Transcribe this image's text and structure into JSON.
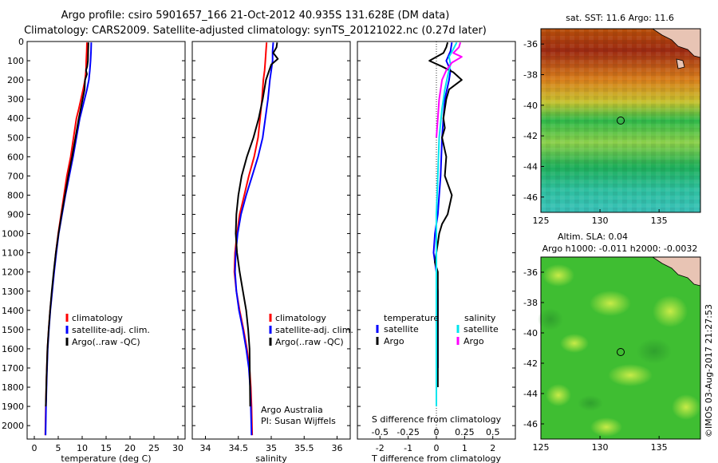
{
  "header": {
    "title": "Argo profile: csiro 5901657_166 21-Oct-2012 40.935S 131.628E (DM data)",
    "subtitle": "Climatology: CARS2009. Satellite-adjusted climatology: synTS_20121022.nc (0.27d later)"
  },
  "footer": {
    "credit": "©IMOS 03-Aug-2017 21:27:53"
  },
  "colors": {
    "climatology": "#ff0000",
    "satellite": "#0000ff",
    "argo": "#000000",
    "t_satellite": "#0000ff",
    "s_satellite": "#00e5ee",
    "s_argo": "#ff00ff"
  },
  "chart_data": [
    {
      "id": "temperature",
      "type": "line",
      "xlabel": "temperature (deg C)",
      "ylabel": "",
      "xlim": [
        -1.5,
        31.5
      ],
      "ylim": [
        2070,
        0
      ],
      "xticks": [
        0,
        5,
        10,
        15,
        20,
        25,
        30
      ],
      "yticks": [
        0,
        100,
        200,
        300,
        400,
        500,
        600,
        700,
        800,
        900,
        1000,
        1100,
        1200,
        1300,
        1400,
        1500,
        1600,
        1700,
        1800,
        1900,
        2000
      ],
      "legend": {
        "placement": "lower-center",
        "entries": [
          "climatology",
          "satellite-adj. clim.",
          "Argo(..raw -QC)"
        ]
      },
      "annotations": [],
      "series": [
        {
          "name": "climatology",
          "color": "#ff0000",
          "x": [
            11.0,
            10.95,
            10.85,
            10.8,
            10.6,
            10.2,
            9.75,
            9.3,
            8.8,
            8.2,
            7.6,
            6.8,
            6.2,
            5.6,
            5.0,
            4.5,
            4.1,
            3.7,
            3.3,
            3.0,
            2.75,
            2.55,
            2.4,
            2.3
          ],
          "y": [
            5,
            50,
            100,
            150,
            200,
            250,
            300,
            350,
            400,
            500,
            600,
            700,
            800,
            900,
            1000,
            1100,
            1200,
            1300,
            1400,
            1500,
            1600,
            1750,
            1900,
            2050
          ]
        },
        {
          "name": "satellite-adj. clim.",
          "color": "#0000ff",
          "x": [
            11.9,
            11.85,
            11.75,
            11.6,
            11.4,
            11.0,
            10.5,
            10.0,
            9.5,
            8.8,
            8.1,
            7.3,
            6.5,
            5.8,
            5.1,
            4.6,
            4.15,
            3.75,
            3.35,
            3.05,
            2.8,
            2.6,
            2.45,
            2.35
          ],
          "y": [
            5,
            50,
            100,
            150,
            200,
            250,
            300,
            350,
            400,
            500,
            600,
            700,
            800,
            900,
            1000,
            1100,
            1200,
            1300,
            1400,
            1500,
            1600,
            1750,
            1900,
            2050
          ]
        },
        {
          "name": "Argo(..raw -QC)",
          "color": "#000000",
          "x": [
            11.3,
            11.25,
            11.2,
            11.05,
            10.8,
            11.0,
            10.6,
            10.5,
            10.1,
            9.7,
            9.3,
            8.6,
            7.9,
            7.1,
            6.4,
            5.7,
            5.05,
            4.5,
            4.05,
            3.65,
            3.3,
            3.0,
            2.75,
            2.55,
            2.4
          ],
          "y": [
            5,
            50,
            100,
            130,
            150,
            170,
            200,
            250,
            300,
            350,
            400,
            500,
            600,
            700,
            800,
            900,
            1000,
            1100,
            1200,
            1300,
            1400,
            1500,
            1600,
            1750,
            1900
          ]
        }
      ]
    },
    {
      "id": "salinity",
      "type": "line",
      "xlabel": "salinity",
      "ylabel": "",
      "xlim": [
        33.8,
        36.2
      ],
      "ylim": [
        2070,
        0
      ],
      "xticks": [
        34,
        34.5,
        35,
        35.5,
        36
      ],
      "xticklabels": [
        "34",
        "34.5",
        "35",
        "35.5",
        "36"
      ],
      "legend": {
        "placement": "lower-center",
        "entries": [
          "climatology",
          "satellite-adj. clim.",
          "Argo(..raw -QC)"
        ]
      },
      "annotations": [
        "Argo Australia",
        "PI: Susan Wijffels"
      ],
      "series": [
        {
          "name": "climatology",
          "color": "#ff0000",
          "x": [
            34.93,
            34.92,
            34.91,
            34.9,
            34.88,
            34.86,
            34.83,
            34.8,
            34.74,
            34.66,
            34.59,
            34.52,
            34.48,
            34.45,
            34.44,
            34.47,
            34.52,
            34.58,
            34.63,
            34.67,
            34.69,
            34.7,
            34.71
          ],
          "y": [
            5,
            50,
            100,
            150,
            200,
            300,
            400,
            500,
            600,
            700,
            800,
            900,
            1000,
            1100,
            1200,
            1300,
            1400,
            1500,
            1600,
            1700,
            1800,
            1900,
            2050
          ]
        },
        {
          "name": "satellite-adj. clim.",
          "color": "#0000ff",
          "x": [
            35.03,
            35.02,
            35.02,
            35.0,
            34.98,
            34.95,
            34.91,
            34.87,
            34.8,
            34.71,
            34.62,
            34.54,
            34.49,
            34.46,
            34.45,
            34.47,
            34.51,
            34.57,
            34.62,
            34.66,
            34.68,
            34.69,
            34.7
          ],
          "y": [
            5,
            50,
            100,
            150,
            200,
            300,
            400,
            500,
            600,
            700,
            800,
            900,
            1000,
            1100,
            1200,
            1300,
            1400,
            1500,
            1600,
            1700,
            1800,
            1900,
            2050
          ]
        },
        {
          "name": "Argo(..raw -QC)",
          "color": "#000000",
          "x": [
            35.09,
            35.08,
            35.03,
            35.1,
            35.0,
            34.97,
            34.92,
            34.87,
            34.81,
            34.73,
            34.63,
            34.55,
            34.5,
            34.47,
            34.46,
            34.48,
            34.52,
            34.57,
            34.62,
            34.65,
            34.67,
            34.68
          ],
          "y": [
            5,
            30,
            60,
            90,
            120,
            150,
            200,
            300,
            400,
            500,
            600,
            700,
            800,
            900,
            1000,
            1100,
            1200,
            1300,
            1400,
            1500,
            1600,
            1900
          ]
        }
      ]
    },
    {
      "id": "differences",
      "type": "line",
      "xlabel": "T difference from climatology",
      "top_xlabel": "S difference from climatology",
      "xlim": [
        -2.8,
        2.8
      ],
      "ylim": [
        2070,
        0
      ],
      "xticks": [
        -2,
        -1,
        0,
        1,
        2
      ],
      "top_xticks": [
        -0.5,
        -0.25,
        0,
        0.25,
        0.5
      ],
      "top_xticklabels": [
        "-0.5",
        "-0.25",
        "0",
        "0.25",
        "0.5"
      ],
      "zero_line": true,
      "legend": {
        "placement": "lower-center",
        "temperature_title": "temperature",
        "salinity_title": "salinity",
        "temperature_entries": [
          "satellite",
          "Argo"
        ],
        "salinity_entries": [
          "satellite",
          "Argo"
        ]
      },
      "series": [
        {
          "name": "satellite",
          "group": "temperature",
          "color": "#0000ff",
          "x": [
            0.55,
            0.5,
            0.35,
            0.5,
            0.45,
            0.3,
            0.25,
            0.2,
            0.15,
            0.1,
            0.05,
            -0.05,
            -0.1,
            0.0,
            0.05,
            0.05,
            0.05
          ],
          "y": [
            5,
            50,
            100,
            150,
            200,
            300,
            400,
            500,
            700,
            800,
            900,
            1000,
            1100,
            1200,
            1300,
            1500,
            1700
          ]
        },
        {
          "name": "Argo",
          "group": "temperature",
          "color": "#000000",
          "x": [
            0.4,
            0.35,
            0.25,
            -0.25,
            0.2,
            0.6,
            0.9,
            0.45,
            0.35,
            0.3,
            0.25,
            0.3,
            0.2,
            0.35,
            0.3,
            0.55,
            0.4,
            0.2,
            0.1,
            0.05,
            0.0,
            -0.05,
            0.05,
            0.05,
            0.05,
            0.05,
            0.05
          ],
          "y": [
            5,
            30,
            60,
            100,
            130,
            160,
            200,
            250,
            300,
            350,
            400,
            450,
            500,
            600,
            700,
            800,
            900,
            950,
            1000,
            1050,
            1100,
            1150,
            1200,
            1300,
            1400,
            1600,
            1800
          ]
        },
        {
          "name": "satellite",
          "group": "salinity",
          "color": "#00e5ee",
          "x": [
            0.72,
            0.6,
            0.45,
            0.5,
            0.4,
            0.3,
            0.2,
            0.1,
            0.05,
            0.0,
            0.0,
            0.0,
            0.0
          ],
          "y": [
            5,
            40,
            80,
            120,
            180,
            250,
            350,
            500,
            700,
            900,
            1100,
            1400,
            1900
          ]
        },
        {
          "name": "Argo",
          "group": "salinity",
          "color": "#ff00ff",
          "x": [
            0.85,
            0.8,
            0.6,
            0.9,
            0.55,
            0.35,
            0.2,
            0.1,
            0.05,
            0.0
          ],
          "y": [
            5,
            30,
            60,
            80,
            110,
            150,
            200,
            300,
            400,
            500
          ]
        }
      ]
    },
    {
      "id": "sst-map",
      "type": "heatmap",
      "title": "sat. SST: 11.6 Argo: 11.6",
      "xlim": [
        125,
        138.5
      ],
      "ylim": [
        -47,
        -35
      ],
      "xticks": [
        125,
        130,
        135
      ],
      "yticks": [
        -36,
        -38,
        -40,
        -42,
        -44,
        -46
      ],
      "marker": {
        "lon": 131.6,
        "lat": -40.9
      }
    },
    {
      "id": "sla-map",
      "type": "heatmap",
      "title": "Altim. SLA: 0.04",
      "subtitle": "Argo h1000: -0.011 h2000: -0.0032",
      "xlim": [
        125,
        138.5
      ],
      "ylim": [
        -47,
        -35
      ],
      "xticks": [
        125,
        130,
        135
      ],
      "yticks": [
        -36,
        -38,
        -40,
        -42,
        -44,
        -46
      ],
      "marker": {
        "lon": 131.6,
        "lat": -40.9
      }
    }
  ]
}
